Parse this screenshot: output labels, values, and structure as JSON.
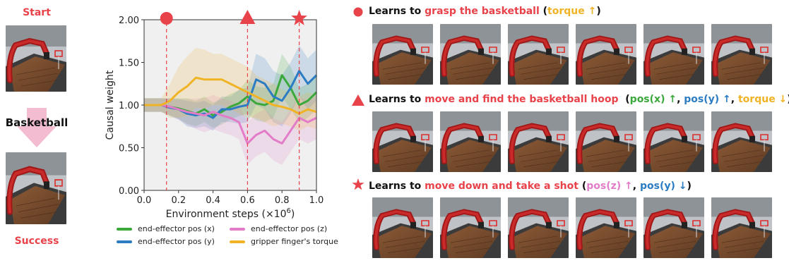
{
  "left_panel": {
    "start_label": "Start",
    "task_label": "Basketball",
    "success_label": "Success"
  },
  "chart_data": {
    "type": "line",
    "xlabel": "Environment steps (×10",
    "xlabel_exp": "6",
    "xlabel_close": ")",
    "ylabel": "Causal weight",
    "xlim": [
      0.0,
      1.0
    ],
    "ylim": [
      0.0,
      2.0
    ],
    "x_ticks": [
      "0.0",
      "0.2",
      "0.4",
      "0.6",
      "0.8",
      "1.0"
    ],
    "y_ticks": [
      "0.00",
      "0.50",
      "1.00",
      "1.50",
      "2.00"
    ],
    "grid": false,
    "legend_position": "bottom",
    "markers": [
      {
        "x": 0.13,
        "shape": "circle"
      },
      {
        "x": 0.6,
        "shape": "triangle"
      },
      {
        "x": 0.9,
        "shape": "star"
      }
    ],
    "x": [
      0.0,
      0.05,
      0.1,
      0.15,
      0.2,
      0.25,
      0.3,
      0.35,
      0.4,
      0.45,
      0.5,
      0.55,
      0.6,
      0.65,
      0.7,
      0.75,
      0.8,
      0.85,
      0.9,
      0.95,
      1.0
    ],
    "series": [
      {
        "name": "end-effector pos (x)",
        "color": "#3aa83a",
        "values": [
          1.0,
          1.0,
          1.0,
          0.98,
          0.96,
          0.93,
          0.9,
          0.95,
          0.88,
          0.92,
          0.98,
          1.02,
          1.1,
          1.02,
          1.0,
          1.05,
          1.35,
          1.2,
          1.0,
          1.05,
          1.15
        ],
        "band": [
          0.08,
          0.08,
          0.08,
          0.1,
          0.12,
          0.15,
          0.15,
          0.15,
          0.15,
          0.15,
          0.15,
          0.15,
          0.2,
          0.2,
          0.2,
          0.2,
          0.25,
          0.25,
          0.2,
          0.2,
          0.2
        ]
      },
      {
        "name": "end-effector pos (y)",
        "color": "#2b7cc2",
        "values": [
          1.0,
          1.0,
          1.0,
          0.97,
          0.95,
          0.9,
          0.88,
          0.9,
          0.85,
          0.95,
          0.95,
          0.98,
          1.0,
          1.3,
          1.25,
          1.1,
          1.05,
          1.2,
          1.4,
          1.25,
          1.35
        ],
        "band": [
          0.08,
          0.08,
          0.08,
          0.1,
          0.12,
          0.15,
          0.15,
          0.15,
          0.15,
          0.15,
          0.15,
          0.2,
          0.2,
          0.3,
          0.3,
          0.3,
          0.3,
          0.3,
          0.3,
          0.3,
          0.3
        ]
      },
      {
        "name": "end-effector pos (z)",
        "color": "#e27bc8",
        "values": [
          1.0,
          1.0,
          1.0,
          0.98,
          0.95,
          0.92,
          0.9,
          0.88,
          0.92,
          0.88,
          0.85,
          0.8,
          0.55,
          0.65,
          0.7,
          0.6,
          0.55,
          0.7,
          0.85,
          0.8,
          0.85
        ],
        "band": [
          0.08,
          0.08,
          0.08,
          0.1,
          0.12,
          0.15,
          0.18,
          0.2,
          0.2,
          0.2,
          0.2,
          0.2,
          0.25,
          0.25,
          0.25,
          0.25,
          0.25,
          0.25,
          0.25,
          0.25,
          0.25
        ]
      },
      {
        "name": "gripper finger's torque",
        "color": "#f1b326",
        "values": [
          1.0,
          1.0,
          1.0,
          1.05,
          1.15,
          1.22,
          1.32,
          1.3,
          1.3,
          1.3,
          1.25,
          1.2,
          1.15,
          1.1,
          1.05,
          1.0,
          0.98,
          0.95,
          0.9,
          0.95,
          0.92
        ],
        "band": [
          0.08,
          0.08,
          0.08,
          0.2,
          0.3,
          0.35,
          0.35,
          0.35,
          0.3,
          0.3,
          0.3,
          0.3,
          0.3,
          0.25,
          0.25,
          0.25,
          0.2,
          0.2,
          0.2,
          0.2,
          0.2
        ]
      }
    ]
  },
  "rows": [
    {
      "icon": "circle-icon",
      "parts": [
        {
          "text": "Learns to ",
          "color": "black"
        },
        {
          "text": "grasp the basketball",
          "color": "red"
        },
        {
          "text": " (",
          "color": "black"
        },
        {
          "text": "torque ↑",
          "color": "yellow"
        },
        {
          "text": ")",
          "color": "black"
        }
      ]
    },
    {
      "icon": "triangle-icon",
      "parts": [
        {
          "text": "Learns to ",
          "color": "black"
        },
        {
          "text": "move and find the basketball hoop",
          "color": "red"
        },
        {
          "text": "  (",
          "color": "black"
        },
        {
          "text": "pos(x) ↑",
          "color": "green"
        },
        {
          "text": ", ",
          "color": "black"
        },
        {
          "text": "pos(y) ↑",
          "color": "blue"
        },
        {
          "text": ", ",
          "color": "black"
        },
        {
          "text": "torque ↓",
          "color": "yellow"
        },
        {
          "text": ")",
          "color": "black"
        }
      ]
    },
    {
      "icon": "star-icon",
      "parts": [
        {
          "text": "Learns to ",
          "color": "black"
        },
        {
          "text": "move down and take a shot",
          "color": "red"
        },
        {
          "text": " (",
          "color": "black"
        },
        {
          "text": "pos(z) ↑",
          "color": "pink"
        },
        {
          "text": ", ",
          "color": "black"
        },
        {
          "text": "pos(y) ↓",
          "color": "blue"
        },
        {
          "text": ")",
          "color": "black"
        }
      ]
    }
  ],
  "colors": {
    "accent_red": "#e8424a",
    "green": "#3aa83a",
    "blue": "#2b7cc2",
    "pink": "#e27bc8",
    "yellow": "#f1b326"
  }
}
